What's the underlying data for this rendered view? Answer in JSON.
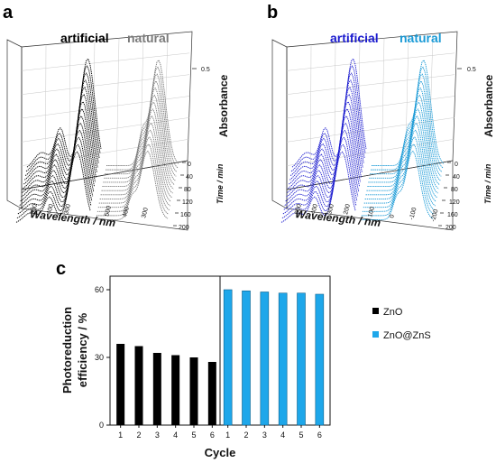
{
  "panels": {
    "a": {
      "letter": "a",
      "legend": [
        {
          "text": "artificial",
          "color": "#000000"
        },
        {
          "text": "natural",
          "color": "#7a7a7a"
        }
      ],
      "z_label": "Absorbance",
      "z_tick": "0.5",
      "wavelength_label": "Wavelength / nm",
      "time_label": "Time / min",
      "time_ticks": [
        "0",
        "40",
        "80",
        "120",
        "160",
        "200"
      ],
      "wavelength_ticks_left": [
        "500",
        "400",
        "300"
      ],
      "wavelength_ticks_right": [
        "500",
        "400",
        "300"
      ],
      "colors": [
        "#000000",
        "#7a7a7a"
      ]
    },
    "b": {
      "letter": "b",
      "legend": [
        {
          "text": "artificial",
          "color": "#1c1ccf"
        },
        {
          "text": "natural",
          "color": "#1a9ad6"
        }
      ],
      "z_label": "Absorbance",
      "z_tick": "0.5",
      "wavelength_label": "Wavelength / nm",
      "time_label": "Time / min",
      "time_ticks": [
        "0",
        "40",
        "80",
        "120",
        "160",
        "200"
      ],
      "wavelength_ticks_left": [
        "500",
        "400",
        "300",
        "200"
      ],
      "wavelength_ticks_right": [
        "100",
        "0",
        "-100",
        "-200"
      ],
      "colors": [
        "#1c1ccf",
        "#1a9ad6"
      ]
    }
  },
  "panel_c": {
    "letter": "c",
    "legend": [
      {
        "text": "ZnO",
        "color": "#000000"
      },
      {
        "text": "ZnO@ZnS",
        "color": "#1ea7ea"
      }
    ]
  },
  "chart_data": [
    {
      "type": "bar",
      "panel": "c",
      "title": "",
      "xlabel": "Cycle",
      "ylabel": "Photoreduction efficiency / %",
      "ylim": [
        0,
        66
      ],
      "yticks": [
        "0",
        "30",
        "60"
      ],
      "categories": [
        "1",
        "2",
        "3",
        "4",
        "5",
        "6"
      ],
      "series": [
        {
          "name": "ZnO",
          "color": "#000000",
          "values": [
            36,
            35,
            32,
            31,
            30,
            28
          ]
        },
        {
          "name": "ZnO@ZnS",
          "color": "#1ea7ea",
          "values": [
            60,
            59.5,
            59,
            58.5,
            58.5,
            58
          ]
        }
      ],
      "grid": false,
      "legend_position": "right"
    }
  ]
}
